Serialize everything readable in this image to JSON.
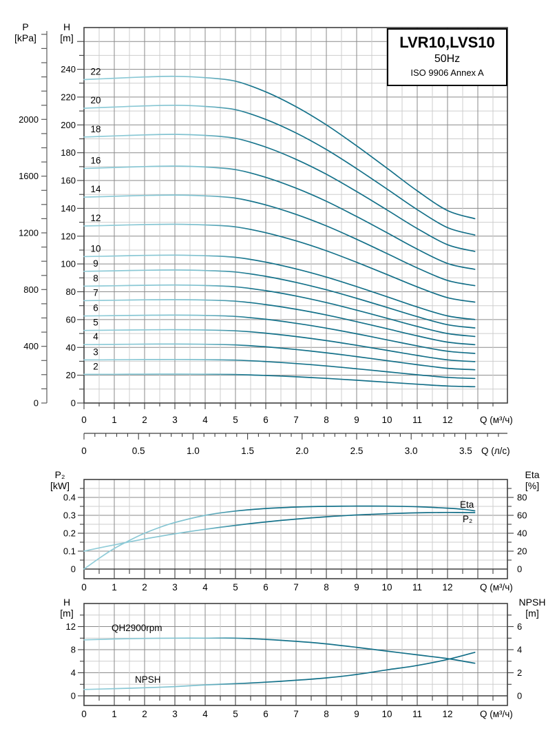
{
  "colors": {
    "curve_dark": "#136E87",
    "curve_light": "#93CEDA",
    "grid_major": "#8A8A8A",
    "grid_minor": "#CDCDCD",
    "frame": "#3F3F3F",
    "axis": "#5A5A5A",
    "text": "#000000"
  },
  "title_box": {
    "model": "LVR10,LVS10",
    "frequency": "50Hz",
    "standard": "ISO 9906 Annex A"
  },
  "headers": {
    "main_left_p": {
      "line1": "P",
      "line2": "[kPa]"
    },
    "main_left_h": {
      "line1": "H",
      "line2": "[m]"
    },
    "mid_left": {
      "line1": "P₂",
      "line2": "[kW]"
    },
    "mid_right": {
      "line1": "Eta",
      "line2": "[%]"
    },
    "bot_left": {
      "line1": "H",
      "line2": "[m]"
    },
    "bot_right": {
      "line1": "NPSH",
      "line2": "[m]"
    }
  },
  "chart_data": [
    {
      "id": "main-qh-curves",
      "type": "line",
      "title": "LVR10,LVS10",
      "subtitle": "50Hz",
      "note": "ISO 9906 Annex A",
      "x_axis": {
        "label": "Q (м³/ч)",
        "min": 0,
        "max": 14,
        "major_step": 1,
        "minor_step": 0.5,
        "tick_labels": [
          "0",
          "1",
          "2",
          "3",
          "4",
          "5",
          "6",
          "7",
          "8",
          "9",
          "10",
          "11",
          "12"
        ]
      },
      "x_axis_secondary": {
        "label": "Q (л/с)",
        "units_in_m3h": 3.6,
        "major_step": 0.5,
        "minor_step": 0.1,
        "tick_labels": [
          "0",
          "0.5",
          "1.0",
          "1.5",
          "2.0",
          "2.5",
          "3.0",
          "3.5"
        ]
      },
      "y_axis_h": {
        "label": "H [m]",
        "min": 0,
        "max": 270,
        "major_step": 20,
        "minor_step": 10,
        "tick_labels": [
          "0",
          "20",
          "40",
          "60",
          "80",
          "100",
          "120",
          "140",
          "160",
          "180",
          "200",
          "220",
          "240"
        ]
      },
      "y_axis_p": {
        "label": "P [kPa]",
        "minor_step_kpa": 100,
        "label_step_kpa": 400,
        "kpa_per_m": 9.80665,
        "tick_labels": [
          "0",
          "400",
          "800",
          "1200",
          "1600",
          "2000"
        ]
      },
      "stage_curves": {
        "comment": "Head H(Q)=h0*shape; one curve per stage count",
        "q": [
          0,
          1,
          2,
          3,
          4,
          5,
          6,
          7,
          8,
          9,
          10,
          11,
          12,
          12.9
        ],
        "shape": [
          1.0,
          1.004,
          1.008,
          1.01,
          1.006,
          0.995,
          0.962,
          0.916,
          0.86,
          0.795,
          0.726,
          0.656,
          0.595,
          0.57
        ],
        "stages": [
          {
            "label": "2",
            "h0": 20.6
          },
          {
            "label": "3",
            "h0": 31.0
          },
          {
            "label": "4",
            "h0": 42.0
          },
          {
            "label": "5",
            "h0": 52.2
          },
          {
            "label": "6",
            "h0": 62.6
          },
          {
            "label": "7",
            "h0": 73.6
          },
          {
            "label": "8",
            "h0": 84.0
          },
          {
            "label": "9",
            "h0": 94.7
          },
          {
            "label": "10",
            "h0": 105.3
          },
          {
            "label": "12",
            "h0": 127.3
          },
          {
            "label": "14",
            "h0": 148.1
          },
          {
            "label": "16",
            "h0": 168.7
          },
          {
            "label": "18",
            "h0": 191.3
          },
          {
            "label": "20",
            "h0": 212.0
          },
          {
            "label": "22",
            "h0": 232.6
          }
        ]
      }
    },
    {
      "id": "power-efficiency",
      "type": "line",
      "x_axis": {
        "label": "Q (м³/ч)",
        "min": 0,
        "max": 14,
        "major_step": 1,
        "minor_step": 0.5,
        "tick_labels": [
          "0",
          "1",
          "2",
          "3",
          "4",
          "5",
          "6",
          "7",
          "8",
          "9",
          "10",
          "11",
          "12"
        ]
      },
      "y_axis_left": {
        "label": "P₂ [kW]",
        "min": 0,
        "max": 0.5,
        "major_step": 0.1,
        "minor_step": 0.05,
        "tick_labels": [
          "0",
          "0.1",
          "0.2",
          "0.3",
          "0.4"
        ]
      },
      "y_axis_right": {
        "label": "Eta [%]",
        "min": 0,
        "max": 100,
        "major_step": 20,
        "minor_step": 10,
        "tick_labels": [
          "0",
          "20",
          "40",
          "60",
          "80"
        ]
      },
      "series": [
        {
          "name": "Eta",
          "curve_label": "Eta",
          "axis": "right",
          "points": [
            [
              0,
              0
            ],
            [
              0.5,
              12
            ],
            [
              1,
              23
            ],
            [
              1.5,
              32
            ],
            [
              2,
              40
            ],
            [
              2.5,
              46.5
            ],
            [
              3,
              52
            ],
            [
              4,
              60
            ],
            [
              5,
              64.8
            ],
            [
              6,
              67.6
            ],
            [
              7,
              69.2
            ],
            [
              8,
              70
            ],
            [
              9,
              70.3
            ],
            [
              10,
              70.2
            ],
            [
              11,
              69.6
            ],
            [
              12,
              68
            ],
            [
              12.5,
              66.8
            ],
            [
              12.9,
              65
            ]
          ]
        },
        {
          "name": "P2",
          "curve_label": "P₂",
          "axis": "left",
          "points": [
            [
              0,
              0.1
            ],
            [
              0.5,
              0.118
            ],
            [
              1,
              0.135
            ],
            [
              1.5,
              0.152
            ],
            [
              2,
              0.168
            ],
            [
              3,
              0.197
            ],
            [
              4,
              0.222
            ],
            [
              5,
              0.244
            ],
            [
              6,
              0.263
            ],
            [
              7,
              0.279
            ],
            [
              8,
              0.292
            ],
            [
              9,
              0.302
            ],
            [
              10,
              0.309
            ],
            [
              11,
              0.314
            ],
            [
              12,
              0.316
            ],
            [
              12.9,
              0.315
            ]
          ]
        }
      ]
    },
    {
      "id": "single-stage-npsh",
      "type": "line",
      "x_axis": {
        "label": "Q (м³/ч)",
        "min": 0,
        "max": 14,
        "major_step": 1,
        "minor_step": 0.5,
        "tick_labels": [
          "0",
          "1",
          "2",
          "3",
          "4",
          "5",
          "6",
          "7",
          "8",
          "9",
          "10",
          "11",
          "12"
        ]
      },
      "y_axis_left": {
        "label": "H [m]",
        "min": 0,
        "max": 16,
        "major_step": 4,
        "minor_step": 2,
        "tick_labels": [
          "0",
          "4",
          "8",
          "12"
        ]
      },
      "y_axis_right": {
        "label": "NPSH [m]",
        "min": 0,
        "max": 8,
        "major_step": 2,
        "minor_step": 1,
        "tick_labels": [
          "0",
          "2",
          "4",
          "6"
        ]
      },
      "series": [
        {
          "name": "QH2900rpm",
          "curve_label": "QH2900rpm",
          "axis": "left",
          "points": [
            [
              0,
              9.7
            ],
            [
              1,
              9.85
            ],
            [
              2,
              9.95
            ],
            [
              3,
              10.0
            ],
            [
              4,
              10.0
            ],
            [
              5,
              10.0
            ],
            [
              6,
              9.78
            ],
            [
              7,
              9.45
            ],
            [
              8,
              9.0
            ],
            [
              9,
              8.4
            ],
            [
              10,
              7.75
            ],
            [
              11,
              7.1
            ],
            [
              12,
              6.45
            ],
            [
              12.9,
              5.65
            ]
          ]
        },
        {
          "name": "NPSH",
          "curve_label": "NPSH",
          "axis": "right",
          "points": [
            [
              0,
              0.55
            ],
            [
              1,
              0.62
            ],
            [
              2,
              0.7
            ],
            [
              3,
              0.8
            ],
            [
              4,
              0.95
            ],
            [
              5,
              1.05
            ],
            [
              6,
              1.18
            ],
            [
              7,
              1.35
            ],
            [
              8,
              1.55
            ],
            [
              9,
              1.85
            ],
            [
              10,
              2.25
            ],
            [
              11,
              2.63
            ],
            [
              12,
              3.15
            ],
            [
              12.9,
              3.77
            ]
          ]
        }
      ]
    }
  ]
}
